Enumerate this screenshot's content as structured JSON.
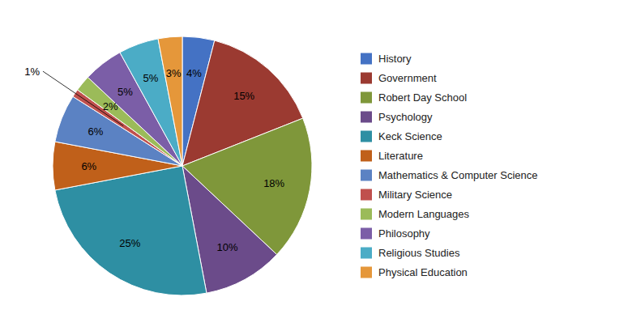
{
  "chart_data": {
    "type": "pie",
    "categories": [
      "History",
      "Government",
      "Robert Day School",
      "Psychology",
      "Keck Science",
      "Literature",
      "Mathematics & Computer Science",
      "Military Science",
      "Modern Languages",
      "Philosophy",
      "Religious Studies",
      "Physical Education"
    ],
    "values": [
      4,
      15,
      18,
      10,
      25,
      6,
      6,
      1,
      2,
      5,
      5,
      3
    ],
    "value_labels": [
      "4%",
      "15%",
      "18%",
      "10%",
      "25%",
      "6%",
      "6%",
      "1%",
      "2%",
      "5%",
      "5%",
      "3%"
    ],
    "colors": [
      "#4472C4",
      "#9B3A31",
      "#7F973A",
      "#6B4B8A",
      "#2E8FA3",
      "#C0601A",
      "#5B82C3",
      "#C0504D",
      "#9BBB59",
      "#7B5EA7",
      "#4BACC6",
      "#E5973A"
    ],
    "data_labels": true,
    "legend": "right"
  }
}
